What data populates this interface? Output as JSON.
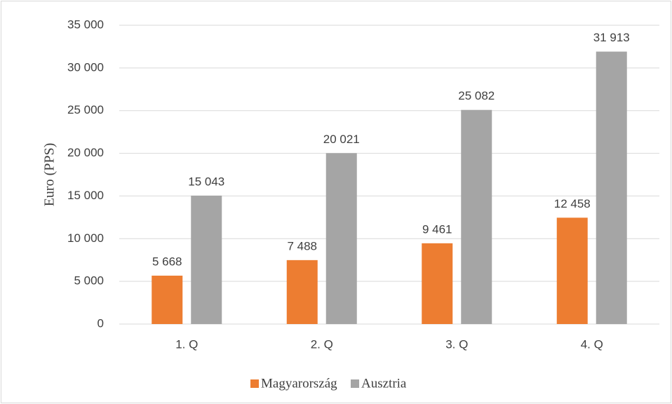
{
  "chart_data": {
    "type": "bar",
    "y_label": "Euro (PPS)",
    "categories": [
      "1. Q",
      "2. Q",
      "3. Q",
      "4. Q"
    ],
    "series": [
      {
        "name": "Magyarország",
        "color": "#ed7d31",
        "values": [
          5668,
          7488,
          9461,
          12458
        ],
        "value_labels": [
          "5 668",
          "7 488",
          "9 461",
          "12 458"
        ]
      },
      {
        "name": "Ausztria",
        "color": "#a5a5a5",
        "values": [
          15043,
          20021,
          25082,
          31913
        ],
        "value_labels": [
          "15 043",
          "20 021",
          "25 082",
          "31 913"
        ]
      }
    ],
    "ylim": [
      0,
      35000
    ],
    "yticks": [
      0,
      {
        "value": 5000,
        "label": "5 000"
      },
      {
        "value": 10000,
        "label": "10 000"
      },
      {
        "value": 15000,
        "label": "15 000"
      },
      {
        "value": 20000,
        "label": "20 000"
      },
      {
        "value": 25000,
        "label": "25 000"
      },
      {
        "value": 30000,
        "label": "30 000"
      },
      {
        "value": 35000,
        "label": "35 000"
      }
    ],
    "grid": true,
    "legend": "bottom"
  }
}
